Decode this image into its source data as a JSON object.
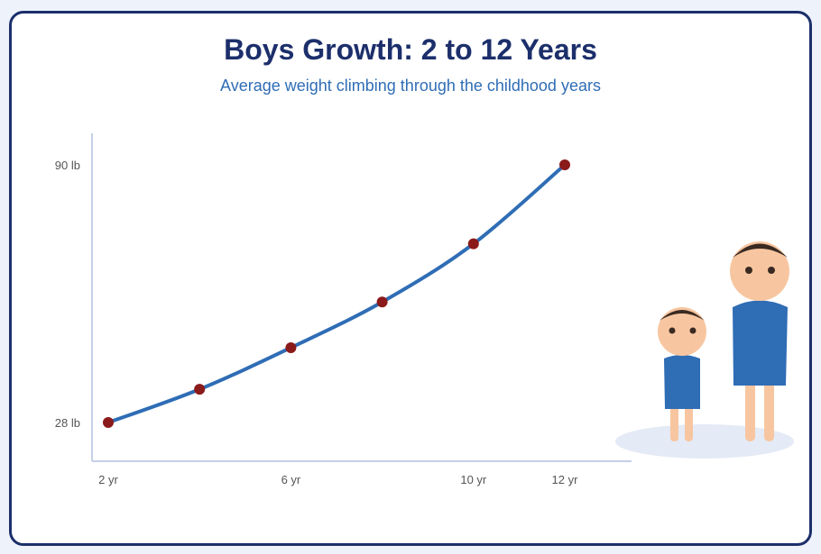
{
  "chart_data": {
    "type": "line",
    "title": "Boys Growth: 2 to 12 Years",
    "subtitle": "Average weight climbing through the childhood years",
    "x": [
      2,
      4,
      6,
      8,
      10,
      12
    ],
    "values": [
      28,
      36,
      46,
      57,
      71,
      90
    ],
    "xticks": [
      {
        "value": 2,
        "label": "2 yr"
      },
      {
        "value": 6,
        "label": "6 yr"
      },
      {
        "value": 10,
        "label": "10 yr"
      },
      {
        "value": 12,
        "label": "12 yr"
      }
    ],
    "yticks": [
      {
        "value": 28,
        "label": "28 lb"
      },
      {
        "value": 90,
        "label": "90 lb"
      }
    ],
    "xlim": [
      2,
      12
    ],
    "ylim": [
      28,
      90
    ],
    "grid": false,
    "colors": {
      "line": "#2f6db5",
      "marker": "#8b1a1a",
      "axis": "#c5d0e8",
      "title": "#1c2f6b",
      "subtitle": "#2f6db5"
    }
  },
  "illustration": {
    "name": "two-boys-illustration",
    "colors": {
      "shirt": "#2f6db5",
      "skin": "#f7c6a0",
      "hair": "#3a2a22",
      "shadow": "#e4eaf6"
    }
  }
}
